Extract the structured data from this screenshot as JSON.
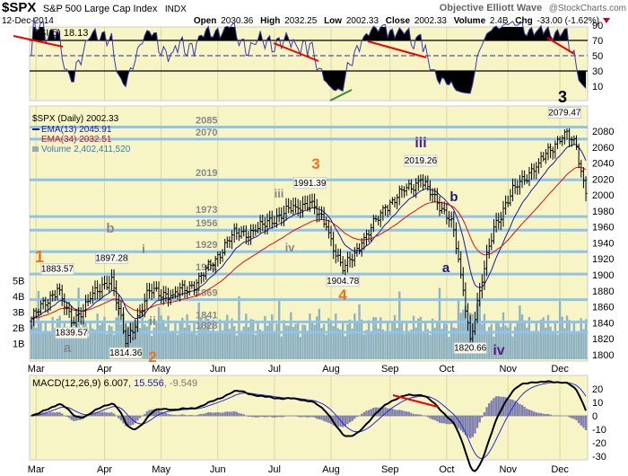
{
  "header": {
    "symbol": "$SPX",
    "name": "S&P 500 Large Cap Index",
    "exchange": "INDX",
    "brand": "Objective Elliott Wave",
    "copyright": "@StockCharts.com",
    "date": "12-Dec-2014",
    "open_label": "Open",
    "open": "2030.36",
    "high_label": "High",
    "high": "2032.25",
    "low_label": "Low",
    "low": "2002.33",
    "close_label": "Close",
    "close": "2002.33",
    "volume_label": "Volume",
    "volume": "2.4B",
    "chg_label": "Chg",
    "chg": "-33.00 (-1.62%)"
  },
  "colors": {
    "panel": "#f7f5c6",
    "level_line": "#8ec4ea",
    "ema13": "#1a1aa0",
    "ema34": "#e01010",
    "volume": "#8fb3c2",
    "orange": "#f07020",
    "purple": "#5a1a8a",
    "navy": "#1a1a70",
    "gray": "#888888"
  },
  "chart_data": [
    {
      "type": "line",
      "title": "RSI(5) 18.13",
      "y_ticks": [
        "90",
        "70",
        "50",
        "30",
        "10"
      ],
      "ylim": [
        0,
        100
      ],
      "overbought": 70,
      "oversold": 30
    },
    {
      "type": "ohlc",
      "legend": {
        "price": "$SPX (Daily) 2002.33",
        "ema13": "EMA(13) 2045.91",
        "ema34": "EMA(34) 2032.51",
        "volume": "Volume 2,402,411,520"
      },
      "y_ticks": [
        "2080",
        "2060",
        "2040",
        "2020",
        "2000",
        "1980",
        "1960",
        "1940",
        "1920",
        "1900",
        "1880",
        "1860",
        "1840",
        "1820",
        "1800"
      ],
      "volume_ticks": [
        "5B",
        "4B",
        "3B",
        "2B",
        "1B"
      ],
      "ylim": [
        1790,
        2100
      ],
      "x_ticks": [
        {
          "label": "Mar",
          "day": 2
        },
        {
          "label": "Apr",
          "day": 31
        },
        {
          "label": "May",
          "day": 55
        },
        {
          "label": "Jun",
          "day": 79
        },
        {
          "label": "Jul",
          "day": 103
        },
        {
          "label": "Aug",
          "day": 127
        },
        {
          "label": "Sep",
          "day": 152
        },
        {
          "label": "Oct",
          "day": 176
        },
        {
          "label": "Nov",
          "day": 202
        },
        {
          "label": "Dec",
          "day": 224
        }
      ],
      "close_waypoints": [
        [
          0,
          1845
        ],
        [
          11,
          1883
        ],
        [
          17,
          1840
        ],
        [
          25,
          1870
        ],
        [
          34,
          1897
        ],
        [
          40,
          1814
        ],
        [
          50,
          1880
        ],
        [
          60,
          1875
        ],
        [
          70,
          1890
        ],
        [
          78,
          1920
        ],
        [
          85,
          1950
        ],
        [
          95,
          1955
        ],
        [
          105,
          1975
        ],
        [
          112,
          1985
        ],
        [
          118,
          1991
        ],
        [
          125,
          1960
        ],
        [
          132,
          1905
        ],
        [
          140,
          1940
        ],
        [
          150,
          1985
        ],
        [
          158,
          2005
        ],
        [
          165,
          2019
        ],
        [
          172,
          1990
        ],
        [
          178,
          1970
        ],
        [
          182,
          1900
        ],
        [
          186,
          1820
        ],
        [
          190,
          1880
        ],
        [
          196,
          1960
        ],
        [
          205,
          2010
        ],
        [
          215,
          2040
        ],
        [
          226,
          2079
        ],
        [
          231,
          2060
        ],
        [
          235,
          2002
        ]
      ],
      "levels": [
        "2085",
        "2070",
        "2019",
        "1973",
        "1956",
        "1929",
        "1901",
        "1869",
        "1841",
        "1828"
      ],
      "callouts": [
        {
          "text": "1883.57",
          "day": 11,
          "price": 1883.57
        },
        {
          "text": "1839.57",
          "day": 17,
          "price": 1839.57
        },
        {
          "text": "1897.28",
          "day": 34,
          "price": 1897.28
        },
        {
          "text": "1814.36",
          "day": 40,
          "price": 1814.36
        },
        {
          "text": "1991.39",
          "day": 118,
          "price": 1991.39
        },
        {
          "text": "1904.78",
          "day": 132,
          "price": 1904.78
        },
        {
          "text": "2019.26",
          "day": 165,
          "price": 2019.26
        },
        {
          "text": "1820.66",
          "day": 186,
          "price": 1820.66
        },
        {
          "text": "2079.47",
          "day": 226,
          "price": 2079.47
        }
      ],
      "wave_labels": [
        {
          "text": "1",
          "color": "orange"
        },
        {
          "text": "2",
          "color": "orange"
        },
        {
          "text": "3",
          "color": "orange"
        },
        {
          "text": "4",
          "color": "orange"
        },
        {
          "text": "a",
          "color": "gray"
        },
        {
          "text": "b",
          "color": "gray"
        },
        {
          "text": "i",
          "color": "gray"
        },
        {
          "text": "ii",
          "color": "gray"
        },
        {
          "text": "iii",
          "color": "gray"
        },
        {
          "text": "iv",
          "color": "gray"
        },
        {
          "text": "iii",
          "color": "purple"
        },
        {
          "text": "iv",
          "color": "purple"
        },
        {
          "text": "a",
          "color": "navy"
        },
        {
          "text": "b",
          "color": "navy"
        },
        {
          "text": "3",
          "color": "black"
        }
      ]
    },
    {
      "type": "line",
      "title": "MACD(12,26,9)",
      "values": {
        "macd": "6.007",
        "signal": "15.556",
        "histogram": "-9.549"
      },
      "y_ticks": [
        "20",
        "10",
        "0",
        "-10",
        "-20",
        "-30"
      ],
      "ylim": [
        -35,
        30
      ]
    }
  ]
}
